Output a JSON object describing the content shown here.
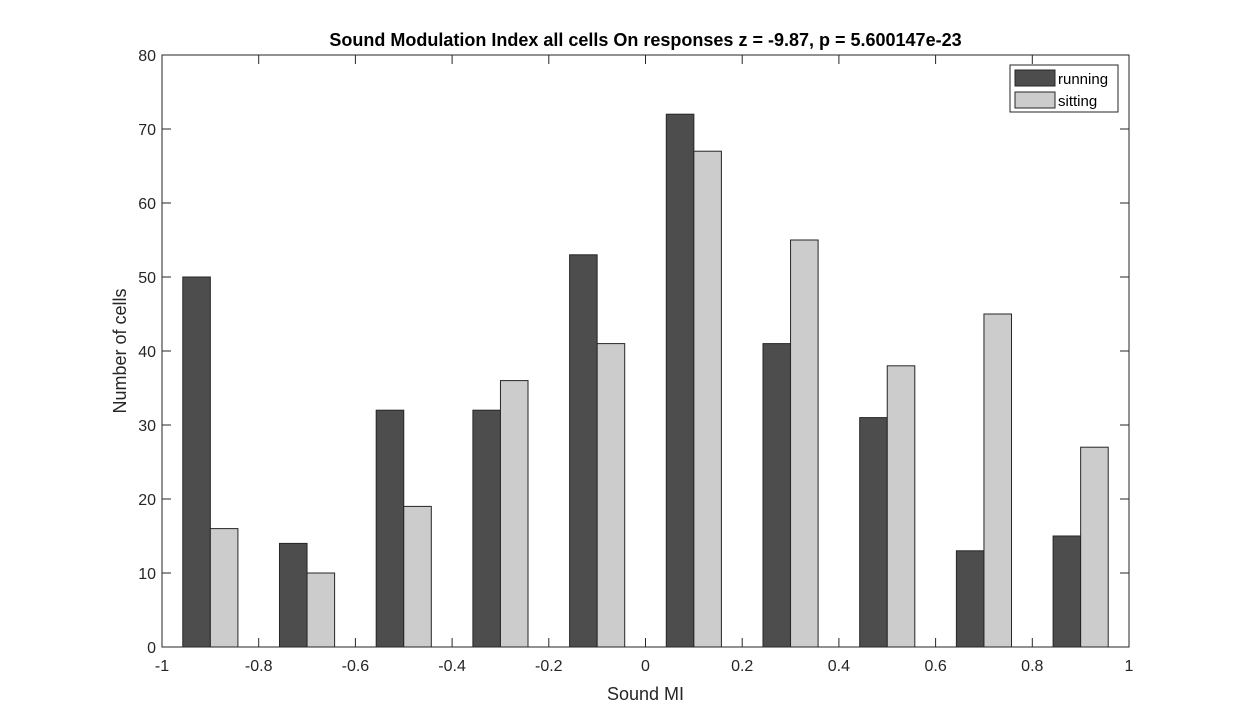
{
  "chart_data": {
    "type": "bar",
    "title": "Sound Modulation Index all cells On responses z = -9.87, p = 5.600147e-23",
    "xlabel": "Sound MI",
    "ylabel": "Number of cells",
    "xlim": [
      -1,
      1
    ],
    "ylim": [
      0,
      80
    ],
    "xticks": [
      -1,
      -0.8,
      -0.6,
      -0.4,
      -0.2,
      0,
      0.2,
      0.4,
      0.6,
      0.8,
      1
    ],
    "xtick_labels": [
      "-1",
      "-0.8",
      "-0.6",
      "-0.4",
      "-0.2",
      "0",
      "0.2",
      "0.4",
      "0.6",
      "0.8",
      "1"
    ],
    "yticks": [
      0,
      10,
      20,
      30,
      40,
      50,
      60,
      70,
      80
    ],
    "ytick_labels": [
      "0",
      "10",
      "20",
      "30",
      "40",
      "50",
      "60",
      "70",
      "80"
    ],
    "bin_centers": [
      -0.9,
      -0.7,
      -0.5,
      -0.3,
      -0.1,
      0.1,
      0.3,
      0.5,
      0.7,
      0.9
    ],
    "bin_width": 0.2,
    "grid": false,
    "legend_position": "top-right",
    "series": [
      {
        "name": "running",
        "color": "#4d4d4d",
        "values": [
          50,
          14,
          32,
          32,
          53,
          72,
          41,
          31,
          13,
          15
        ]
      },
      {
        "name": "sitting",
        "color": "#cccccc",
        "values": [
          16,
          10,
          19,
          36,
          41,
          67,
          55,
          38,
          45,
          27
        ]
      }
    ]
  }
}
